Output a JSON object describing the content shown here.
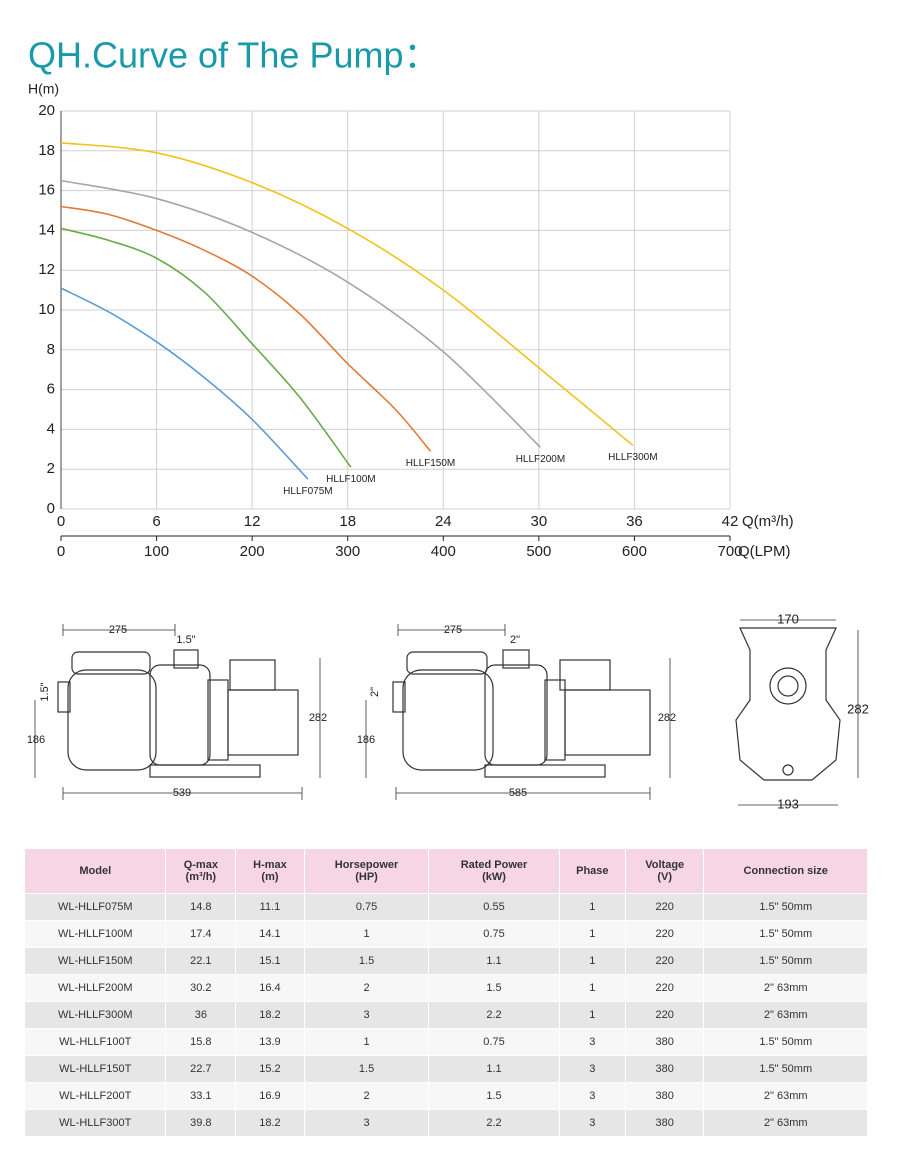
{
  "title": "QH.Curve of The Pump：",
  "chart_data": {
    "type": "line",
    "y_label": "H(m)",
    "x_label": "Q(m³/h)",
    "x2_label": "Q(LPM)",
    "xlim": [
      0,
      42
    ],
    "xticks": [
      0,
      6,
      12,
      18,
      24,
      30,
      36,
      42
    ],
    "x2lim": [
      0,
      700
    ],
    "x2ticks": [
      0,
      100,
      200,
      300,
      400,
      500,
      600,
      700
    ],
    "ylim": [
      0,
      20
    ],
    "yticks": [
      0,
      2,
      4,
      6,
      8,
      10,
      12,
      14,
      16,
      18,
      20
    ],
    "grid": true,
    "series": [
      {
        "name": "HLLF075M",
        "color": "#5b9bd5",
        "x": [
          0,
          3,
          6,
          9,
          12,
          15.5
        ],
        "values": [
          11.1,
          9.9,
          8.4,
          6.6,
          4.5,
          1.5
        ]
      },
      {
        "name": "HLLF100M",
        "color": "#6aaa4a",
        "x": [
          0,
          3,
          6,
          9,
          12,
          15,
          18.2
        ],
        "values": [
          14.1,
          13.5,
          12.6,
          10.9,
          8.3,
          5.6,
          2.1
        ]
      },
      {
        "name": "HLLF150M",
        "color": "#e07b39",
        "x": [
          0,
          3,
          6,
          9,
          12,
          15,
          18,
          21,
          23.2
        ],
        "values": [
          15.2,
          14.8,
          14.0,
          13.0,
          11.7,
          9.8,
          7.3,
          5.0,
          2.9
        ]
      },
      {
        "name": "HLLF200M",
        "color": "#a6a6a6",
        "x": [
          0,
          6,
          12,
          18,
          24,
          30.1
        ],
        "values": [
          16.5,
          15.6,
          13.9,
          11.4,
          7.9,
          3.1
        ]
      },
      {
        "name": "HLLF300M",
        "color": "#f2c21b",
        "x": [
          0,
          6,
          12,
          18,
          24,
          30,
          35.9
        ],
        "values": [
          18.4,
          17.9,
          16.4,
          14.1,
          11.0,
          7.1,
          3.2
        ]
      }
    ]
  },
  "diagrams": [
    {
      "length_to_inlet": "275",
      "port": "1.5\"",
      "inlet": "1.5\"",
      "inlet_height": "186",
      "height": "282",
      "length": "539"
    },
    {
      "length_to_inlet": "275",
      "port": "2\"",
      "inlet": "2\"",
      "inlet_height": "186",
      "height": "282",
      "length": "585"
    },
    {
      "top_width": "170",
      "height": "282",
      "base_width": "193"
    }
  ],
  "table": {
    "header": [
      "Model",
      "Q-max\n(m³/h)",
      "H-max\n(m)",
      "Horsepower\n(HP)",
      "Rated Power\n(kW)",
      "Phase",
      "Voltage\n(V)",
      "Connection size"
    ],
    "rows": [
      [
        "WL-HLLF075M",
        "14.8",
        "11.1",
        "0.75",
        "0.55",
        "1",
        "220",
        "1.5\" 50mm"
      ],
      [
        "WL-HLLF100M",
        "17.4",
        "14.1",
        "1",
        "0.75",
        "1",
        "220",
        "1.5\" 50mm"
      ],
      [
        "WL-HLLF150M",
        "22.1",
        "15.1",
        "1.5",
        "1.1",
        "1",
        "220",
        "1.5\" 50mm"
      ],
      [
        "WL-HLLF200M",
        "30.2",
        "16.4",
        "2",
        "1.5",
        "1",
        "220",
        "2\" 63mm"
      ],
      [
        "WL-HLLF300M",
        "36",
        "18.2",
        "3",
        "2.2",
        "1",
        "220",
        "2\" 63mm"
      ],
      [
        "WL-HLLF100T",
        "15.8",
        "13.9",
        "1",
        "0.75",
        "3",
        "380",
        "1.5\" 50mm"
      ],
      [
        "WL-HLLF150T",
        "22.7",
        "15.2",
        "1.5",
        "1.1",
        "3",
        "380",
        "1.5\" 50mm"
      ],
      [
        "WL-HLLF200T",
        "33.1",
        "16.9",
        "2",
        "1.5",
        "3",
        "380",
        "2\" 63mm"
      ],
      [
        "WL-HLLF300T",
        "39.8",
        "18.2",
        "3",
        "2.2",
        "3",
        "380",
        "2\" 63mm"
      ]
    ]
  }
}
